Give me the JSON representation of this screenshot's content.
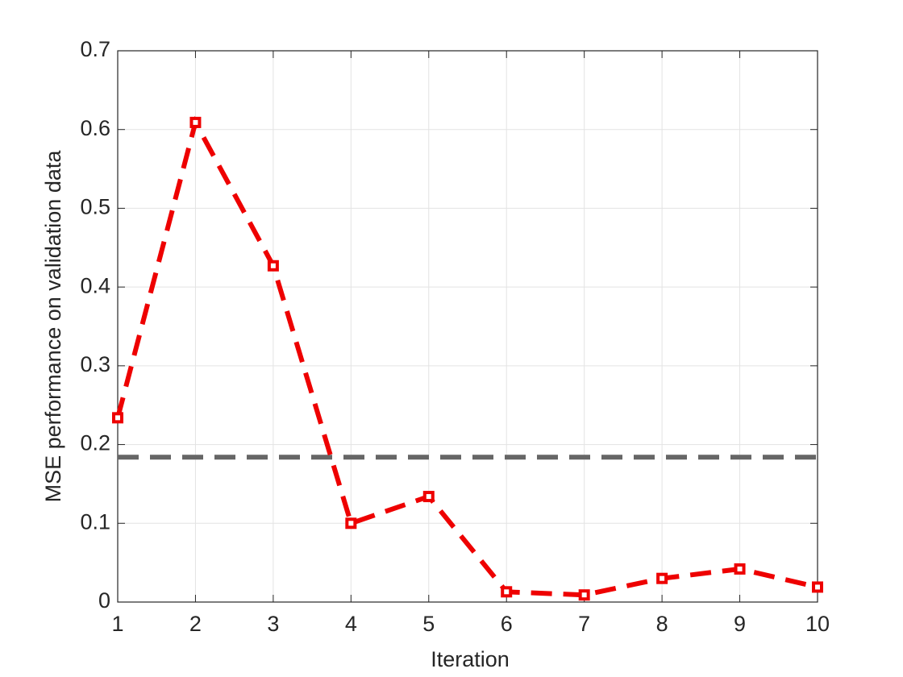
{
  "chart_data": {
    "type": "line",
    "x_label": "Iteration",
    "y_label": "MSE performance on validation data",
    "x": [
      1,
      2,
      3,
      4,
      5,
      6,
      7,
      8,
      9,
      10
    ],
    "series": [
      {
        "color": "#ee0000",
        "values": [
          0.234,
          0.609,
          0.427,
          0.1,
          0.134,
          0.013,
          0.009,
          0.03,
          0.042,
          0.019
        ]
      }
    ],
    "reference_line": {
      "value": 0.184,
      "color": "#666666"
    },
    "xlim": [
      1,
      10
    ],
    "ylim": [
      0,
      0.7
    ],
    "xticks": [
      1,
      2,
      3,
      4,
      5,
      6,
      7,
      8,
      9,
      10
    ],
    "yticks": [
      0,
      0.1,
      0.2,
      0.3,
      0.4,
      0.5,
      0.6,
      0.7
    ],
    "grid": true
  }
}
